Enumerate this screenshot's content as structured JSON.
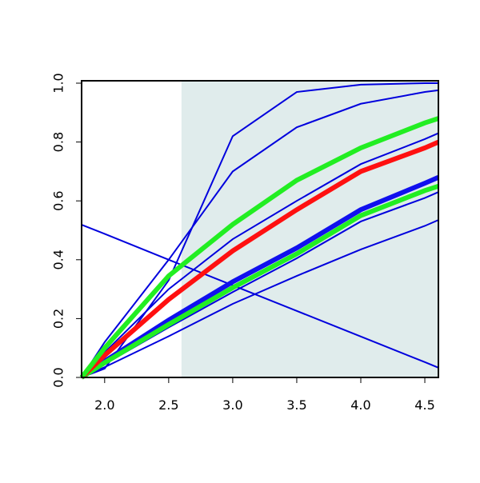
{
  "chart_data": {
    "type": "line",
    "x": [
      1.82,
      2.0,
      2.5,
      3.0,
      3.5,
      4.0,
      4.5,
      4.606
    ],
    "xlim": [
      1.82,
      4.606
    ],
    "ylim": [
      0,
      1.0
    ],
    "xticks": [
      {
        "value": 2,
        "label": "2.0"
      },
      2.5,
      {
        "value": 3,
        "label": "3.0"
      },
      3.5,
      {
        "value": 4,
        "label": "4.0"
      },
      4.5
    ],
    "yticks": [
      {
        "value": 0,
        "label": "0.0"
      },
      0.2,
      0.4,
      0.6,
      0.8,
      {
        "value": 1,
        "label": "1.0"
      }
    ],
    "shaded_xrange": [
      2.6,
      4.606
    ],
    "shade_color": "#e0ecec",
    "series": [
      {
        "color": "#0000dd",
        "line_width": 2,
        "values": [
          0.519,
          0.488,
          0.4,
          0.313,
          0.226,
          0.139,
          0.052,
          0.033
        ]
      },
      {
        "color": "#0000dd",
        "line_width": 2,
        "values": [
          0,
          0.03,
          0.33,
          0.82,
          0.97,
          0.995,
          1.0,
          1.0
        ]
      },
      {
        "color": "#0000dd",
        "line_width": 2,
        "values": [
          0,
          0.12,
          0.4,
          0.7,
          0.85,
          0.93,
          0.97,
          0.976
        ]
      },
      {
        "color": "#0000dd",
        "line_width": 2,
        "values": [
          0,
          0.035,
          0.14,
          0.25,
          0.345,
          0.435,
          0.515,
          0.535
        ]
      },
      {
        "color": "#0000dd",
        "line_width": 2,
        "values": [
          0,
          0.045,
          0.17,
          0.29,
          0.405,
          0.53,
          0.61,
          0.63
        ]
      },
      {
        "color": "#0000dd",
        "line_width": 2,
        "values": [
          0,
          0.085,
          0.3,
          0.47,
          0.6,
          0.725,
          0.81,
          0.83
        ]
      },
      {
        "color": "#1010ee",
        "line_width": 6,
        "values": [
          0,
          0.055,
          0.195,
          0.325,
          0.44,
          0.57,
          0.66,
          0.68
        ]
      },
      {
        "color": "#22ee22",
        "line_width": 6,
        "values": [
          0,
          0.05,
          0.18,
          0.305,
          0.42,
          0.55,
          0.635,
          0.65
        ]
      },
      {
        "color": "#ff1010",
        "line_width": 6,
        "values": [
          0,
          0.075,
          0.265,
          0.43,
          0.57,
          0.7,
          0.78,
          0.8
        ]
      },
      {
        "color": "#22ee22",
        "line_width": 6,
        "values": [
          0,
          0.1,
          0.345,
          0.52,
          0.67,
          0.78,
          0.865,
          0.88
        ]
      }
    ]
  }
}
